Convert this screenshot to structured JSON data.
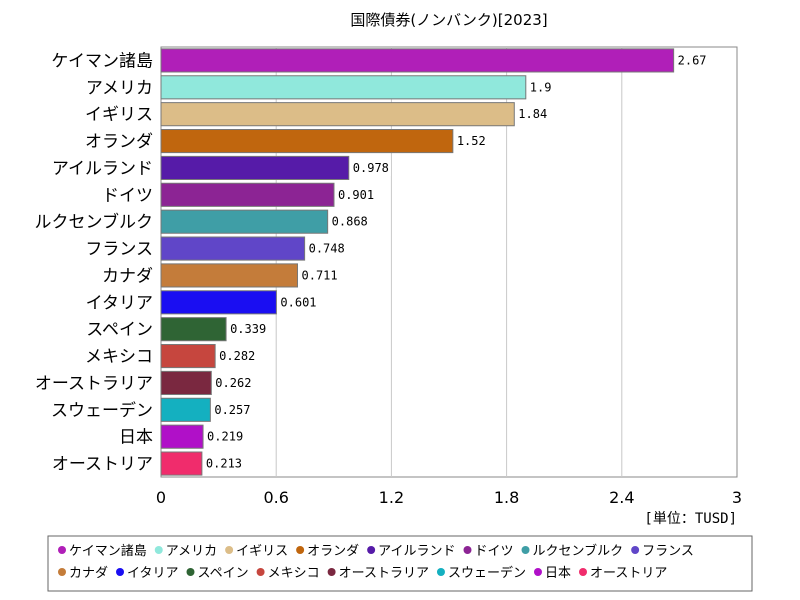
{
  "chart_data": {
    "type": "bar",
    "orientation": "horizontal",
    "title": "国際債券(ノンバンク)[2023]",
    "unit_label": "[単位：TUSD]",
    "categories": [
      "ケイマン諸島",
      "アメリカ",
      "イギリス",
      "オランダ",
      "アイルランド",
      "ドイツ",
      "ルクセンブルク",
      "フランス",
      "カナダ",
      "イタリア",
      "スペイン",
      "メキシコ",
      "オーストラリア",
      "スウェーデン",
      "日本",
      "オーストリア"
    ],
    "values": [
      2.67,
      1.9,
      1.84,
      1.52,
      0.978,
      0.901,
      0.868,
      0.748,
      0.711,
      0.601,
      0.339,
      0.282,
      0.262,
      0.257,
      0.219,
      0.213
    ],
    "value_labels": [
      "2.67",
      "1.9",
      "1.84",
      "1.52",
      "0.978",
      "0.901",
      "0.868",
      "0.748",
      "0.711",
      "0.601",
      "0.339",
      "0.282",
      "0.262",
      "0.257",
      "0.219",
      "0.213"
    ],
    "colors": [
      "#b01fb8",
      "#90e8dc",
      "#dcbd88",
      "#c0660e",
      "#561ba8",
      "#8c2494",
      "#3f9ea6",
      "#6046c8",
      "#c47c3a",
      "#1a0ef2",
      "#2f6434",
      "#c6463e",
      "#7a2840",
      "#14b0c0",
      "#b010c8",
      "#f02c6c"
    ],
    "xlim": [
      0,
      3
    ],
    "x_ticks": [
      "0",
      "0.6",
      "1.2",
      "1.8",
      "2.4",
      "3"
    ],
    "x_tick_values": [
      0,
      0.6,
      1.2,
      1.8,
      2.4,
      3
    ],
    "grid": true,
    "legend_position": "bottom"
  }
}
